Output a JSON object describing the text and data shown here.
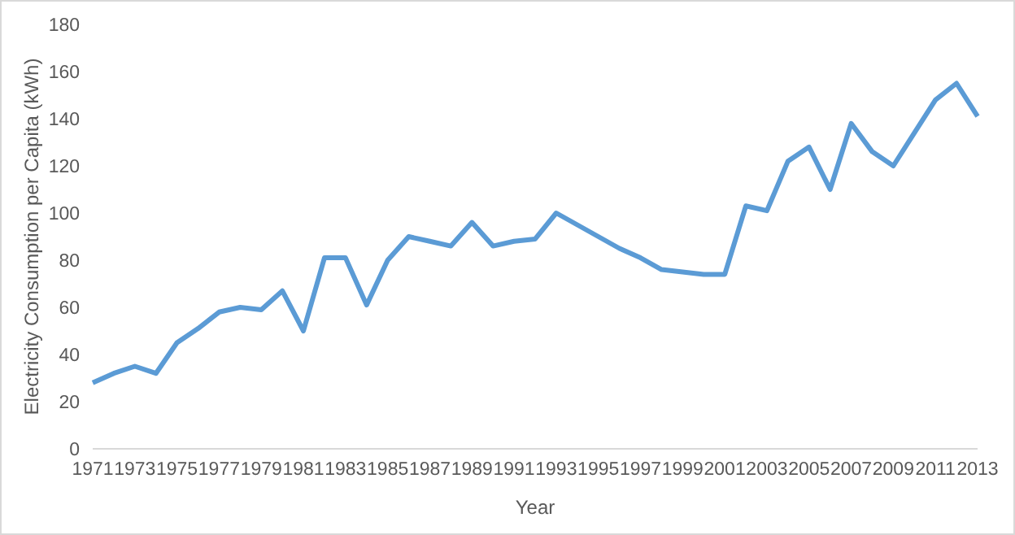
{
  "chart_data": {
    "type": "line",
    "xlabel": "Year",
    "ylabel": "Electricity Consumption per Capita (kWh)",
    "categories": [
      "1971",
      null,
      "1973",
      null,
      "1975",
      null,
      "1977",
      null,
      "1979",
      null,
      "1981",
      null,
      "1983",
      null,
      "1985",
      null,
      "1987",
      null,
      "1989",
      null,
      "1991",
      null,
      "1993",
      null,
      "1995",
      null,
      "1997",
      null,
      "1999",
      null,
      "2001",
      null,
      "2003",
      null,
      "2005",
      null,
      "2007",
      null,
      "2009",
      null,
      "2011",
      null,
      "2013"
    ],
    "series": [
      {
        "color": "#5b9bd5",
        "values": [
          28,
          32,
          35,
          32,
          45,
          51,
          58,
          60,
          59,
          67,
          50,
          81,
          81,
          61,
          80,
          90,
          88,
          86,
          96,
          86,
          88,
          89,
          100,
          95,
          90,
          85,
          81,
          76,
          75,
          74,
          74,
          103,
          101,
          122,
          128,
          110,
          138,
          126,
          120,
          134,
          148,
          155,
          141
        ]
      }
    ],
    "ylim": [
      0,
      180
    ],
    "yticks": [
      0,
      20,
      40,
      60,
      80,
      100,
      120,
      140,
      160,
      180
    ],
    "grid": false,
    "legend": false,
    "marker": "none",
    "line_style": "solid"
  }
}
